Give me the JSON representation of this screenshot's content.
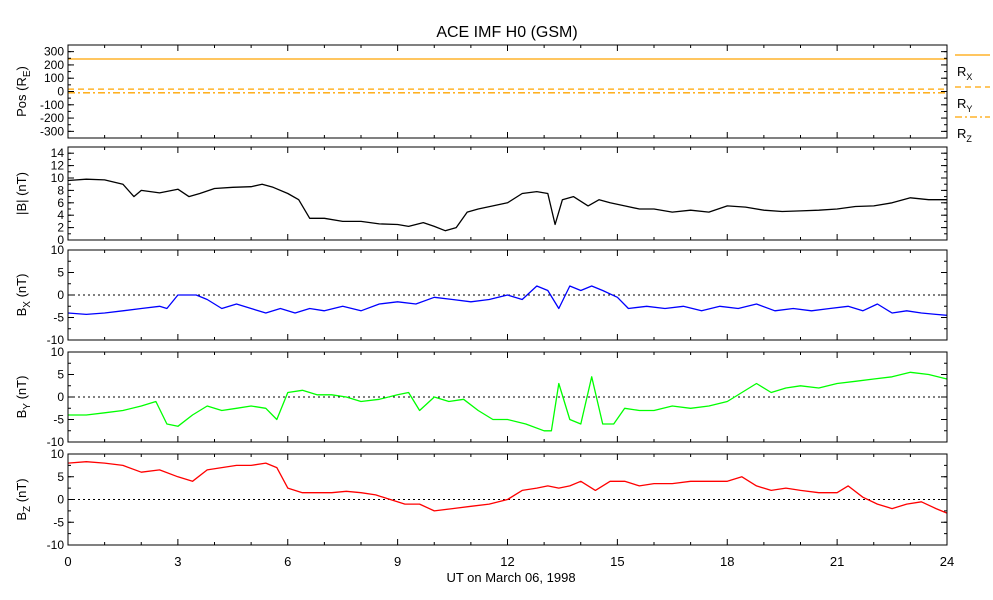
{
  "title": "ACE IMF H0 (GSM)",
  "xlabel_text": "UT on March 06, 1998",
  "chart_data": {
    "type": "line",
    "title": "ACE IMF H0 (GSM)",
    "xlabel": "UT on March 06, 1998",
    "xlim": [
      0,
      24
    ],
    "xticks": [
      "0",
      "3",
      "6",
      "9",
      "12",
      "15",
      "18",
      "21",
      "24"
    ],
    "panels": [
      {
        "id": "pos",
        "ylabel_main": "Pos (R",
        "ylabel_sub": "E",
        "ylabel_tail": ")",
        "ylim": [
          -350,
          350
        ],
        "yticks": [
          "-300",
          "-200",
          "-100",
          "0",
          "100",
          "200",
          "300"
        ],
        "zero_line": false,
        "series": [
          {
            "name": "RX",
            "name_main": "R",
            "name_sub": "X",
            "color": "#FFA500",
            "style": "solid",
            "x": [
              0,
              24
            ],
            "y": [
              245,
              245
            ]
          },
          {
            "name": "RY",
            "name_main": "R",
            "name_sub": "Y",
            "color": "#FFA500",
            "style": "dashed",
            "x": [
              0,
              24
            ],
            "y": [
              18,
              18
            ]
          },
          {
            "name": "RZ",
            "name_main": "R",
            "name_sub": "Z",
            "color": "#FFA500",
            "style": "dashdot",
            "x": [
              0,
              24
            ],
            "y": [
              -10,
              -10
            ]
          }
        ]
      },
      {
        "id": "bmag",
        "ylabel_main": "|B| (nT)",
        "ylim": [
          0,
          15
        ],
        "yticks": [
          "0",
          "2",
          "4",
          "6",
          "8",
          "10",
          "12",
          "14"
        ],
        "zero_line": false,
        "series": [
          {
            "name": "|B|",
            "color": "#000000",
            "style": "solid",
            "x": [
              0,
              0.5,
              1.0,
              1.5,
              1.8,
              2.0,
              2.5,
              3.0,
              3.3,
              3.6,
              4.0,
              4.5,
              5.0,
              5.3,
              5.6,
              6.0,
              6.3,
              6.6,
              7.0,
              7.5,
              8.0,
              8.5,
              9.0,
              9.3,
              9.7,
              10.0,
              10.3,
              10.6,
              10.9,
              11.2,
              11.6,
              12.0,
              12.4,
              12.8,
              13.1,
              13.3,
              13.5,
              13.8,
              14.2,
              14.5,
              14.8,
              15.2,
              15.6,
              16.0,
              16.5,
              17.0,
              17.5,
              18.0,
              18.5,
              19.0,
              19.5,
              20.0,
              20.5,
              21.0,
              21.5,
              22.0,
              22.5,
              23.0,
              23.5,
              24.0
            ],
            "y": [
              9.6,
              9.8,
              9.7,
              9.0,
              7.0,
              8.0,
              7.6,
              8.2,
              7.0,
              7.5,
              8.3,
              8.5,
              8.6,
              9.0,
              8.5,
              7.5,
              6.5,
              3.5,
              3.5,
              3.0,
              3.0,
              2.6,
              2.5,
              2.2,
              2.8,
              2.2,
              1.5,
              2.0,
              4.5,
              5.0,
              5.5,
              6.0,
              7.5,
              7.8,
              7.5,
              2.5,
              6.5,
              7.0,
              5.5,
              6.5,
              6.0,
              5.5,
              5.0,
              5.0,
              4.5,
              4.8,
              4.5,
              5.5,
              5.3,
              4.8,
              4.6,
              4.7,
              4.8,
              5.0,
              5.4,
              5.5,
              6.0,
              6.8,
              6.5,
              6.5
            ]
          }
        ]
      },
      {
        "id": "bx",
        "ylabel_main": "B",
        "ylabel_sub": "X",
        "ylabel_tail": " (nT)",
        "ylim": [
          -10,
          10
        ],
        "yticks": [
          "-10",
          "-5",
          "0",
          "5",
          "10"
        ],
        "zero_line": true,
        "series": [
          {
            "name": "Bx",
            "color": "#0000FF",
            "style": "solid",
            "x": [
              0,
              0.5,
              1.0,
              1.5,
              2.0,
              2.5,
              2.7,
              3.0,
              3.5,
              3.8,
              4.2,
              4.6,
              5.0,
              5.4,
              5.8,
              6.2,
              6.6,
              7.0,
              7.5,
              8.0,
              8.5,
              9.0,
              9.5,
              10.0,
              10.5,
              11.0,
              11.5,
              12.0,
              12.4,
              12.8,
              13.1,
              13.4,
              13.7,
              14.0,
              14.3,
              14.6,
              15.0,
              15.3,
              15.8,
              16.3,
              16.8,
              17.3,
              17.8,
              18.3,
              18.8,
              19.3,
              19.8,
              20.3,
              20.8,
              21.3,
              21.7,
              22.1,
              22.5,
              22.9,
              23.3,
              23.7,
              24.0
            ],
            "y": [
              -4,
              -4.3,
              -4,
              -3.5,
              -3,
              -2.5,
              -3,
              0,
              0,
              -1,
              -3,
              -2,
              -3,
              -4,
              -3,
              -4,
              -3,
              -3.5,
              -2.5,
              -3.5,
              -2,
              -1.5,
              -2,
              -0.5,
              -1,
              -1.5,
              -1,
              0,
              -1,
              2,
              1,
              -3,
              2,
              1,
              2,
              1,
              -0.5,
              -3,
              -2.5,
              -3,
              -2.5,
              -3.5,
              -2.5,
              -3,
              -2,
              -3.5,
              -3,
              -3.5,
              -3,
              -2.5,
              -3.5,
              -2,
              -4,
              -3.5,
              -4,
              -4.3,
              -4.5
            ]
          }
        ]
      },
      {
        "id": "by",
        "ylabel_main": "B",
        "ylabel_sub": "Y",
        "ylabel_tail": " (nT)",
        "ylim": [
          -10,
          10
        ],
        "yticks": [
          "-10",
          "-5",
          "0",
          "5",
          "10"
        ],
        "zero_line": true,
        "series": [
          {
            "name": "By",
            "color": "#00FF00",
            "style": "solid",
            "x": [
              0,
              0.5,
              1.0,
              1.5,
              2.0,
              2.4,
              2.7,
              3.0,
              3.4,
              3.8,
              4.2,
              4.6,
              5.0,
              5.4,
              5.7,
              6.0,
              6.4,
              6.8,
              7.2,
              7.6,
              8.0,
              8.5,
              9.0,
              9.3,
              9.6,
              10.0,
              10.4,
              10.8,
              11.2,
              11.6,
              12.0,
              12.5,
              13.0,
              13.2,
              13.4,
              13.7,
              14.0,
              14.3,
              14.6,
              14.9,
              15.2,
              15.6,
              16.0,
              16.5,
              17.0,
              17.5,
              18.0,
              18.4,
              18.8,
              19.2,
              19.6,
              20.0,
              20.5,
              21.0,
              21.5,
              22.0,
              22.5,
              23.0,
              23.5,
              24.0
            ],
            "y": [
              -4,
              -4,
              -3.5,
              -3,
              -2,
              -1,
              -6,
              -6.5,
              -4,
              -2,
              -3,
              -2.5,
              -2,
              -2.5,
              -5,
              1,
              1.5,
              0.5,
              0.5,
              0,
              -1,
              -0.5,
              0.5,
              1,
              -3,
              0,
              -1,
              -0.5,
              -3,
              -5,
              -5,
              -6,
              -7.5,
              -7.5,
              3,
              -5,
              -6,
              4.5,
              -6,
              -6,
              -2.5,
              -3,
              -3,
              -2,
              -2.5,
              -2,
              -1,
              1,
              3,
              1,
              2,
              2.5,
              2,
              3,
              3.5,
              4,
              4.5,
              5.5,
              5,
              4
            ]
          }
        ]
      },
      {
        "id": "bz",
        "ylabel_main": "B",
        "ylabel_sub": "Z",
        "ylabel_tail": " (nT)",
        "ylim": [
          -10,
          10
        ],
        "yticks": [
          "-10",
          "-5",
          "0",
          "5",
          "10"
        ],
        "zero_line": true,
        "series": [
          {
            "name": "Bz",
            "color": "#FF0000",
            "style": "solid",
            "x": [
              0,
              0.5,
              1.0,
              1.5,
              2.0,
              2.5,
              3.0,
              3.4,
              3.8,
              4.2,
              4.6,
              5.0,
              5.4,
              5.7,
              6.0,
              6.4,
              6.8,
              7.2,
              7.6,
              8.0,
              8.4,
              8.8,
              9.2,
              9.6,
              10.0,
              10.5,
              11.0,
              11.5,
              12.0,
              12.4,
              12.8,
              13.1,
              13.4,
              13.7,
              14.0,
              14.4,
              14.8,
              15.2,
              15.6,
              16.0,
              16.5,
              17.0,
              17.5,
              18.0,
              18.4,
              18.8,
              19.2,
              19.6,
              20.0,
              20.5,
              21.0,
              21.3,
              21.7,
              22.1,
              22.5,
              22.9,
              23.3,
              23.7,
              24.0
            ],
            "y": [
              8,
              8.3,
              8,
              7.5,
              6,
              6.5,
              5,
              4,
              6.5,
              7,
              7.5,
              7.5,
              8,
              7,
              2.5,
              1.5,
              1.5,
              1.5,
              1.8,
              1.5,
              1,
              0,
              -1,
              -1,
              -2.5,
              -2,
              -1.5,
              -1,
              0,
              2,
              2.5,
              3,
              2.5,
              3,
              4,
              2,
              4,
              4,
              3,
              3.5,
              3.5,
              4,
              4,
              4,
              5,
              3,
              2,
              2.5,
              2,
              1.5,
              1.5,
              3,
              0.5,
              -1,
              -2,
              -1,
              -0.5,
              -2,
              -3
            ]
          }
        ]
      }
    ]
  }
}
